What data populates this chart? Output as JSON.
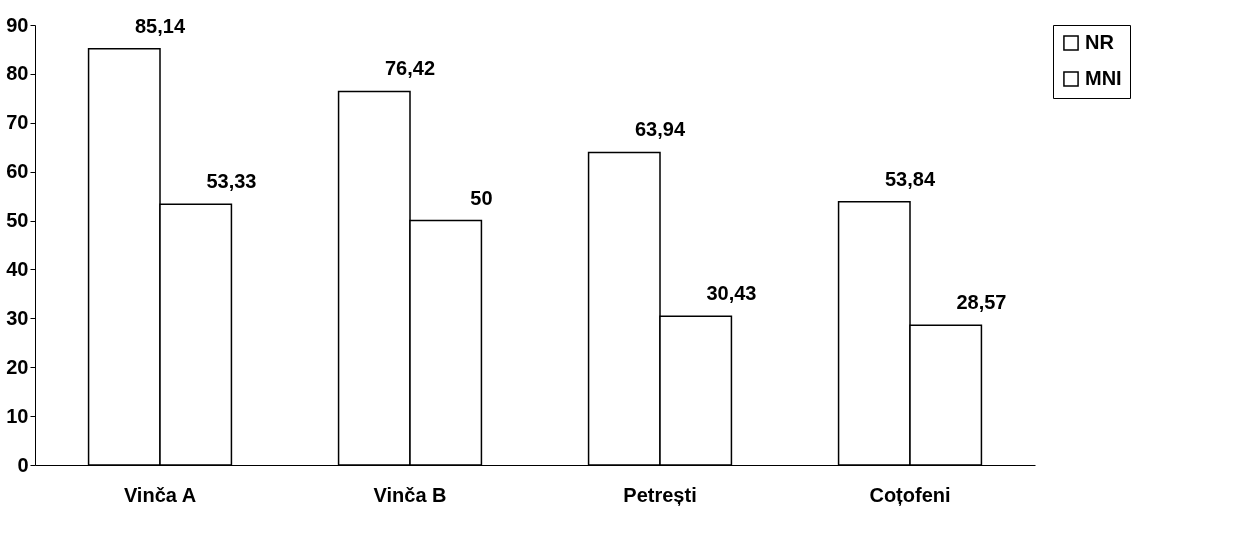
{
  "chart_data": {
    "type": "bar",
    "categories": [
      "Vinča A",
      "Vinča B",
      "Petrești",
      "Coțofeni"
    ],
    "series": [
      {
        "name": "NR",
        "color": "#ffffff",
        "values": [
          85.14,
          76.42,
          63.94,
          53.84
        ],
        "value_labels": [
          "85,14",
          "76,42",
          "63,94",
          "53,84"
        ]
      },
      {
        "name": "MNI",
        "color": "#ffffff",
        "values": [
          53.33,
          50,
          30.43,
          28.57
        ],
        "value_labels": [
          "53,33",
          "50",
          "30,43",
          "28,57"
        ]
      }
    ],
    "ylim": [
      0,
      90
    ],
    "yticks": [
      0,
      10,
      20,
      30,
      40,
      50,
      60,
      70,
      80,
      90
    ],
    "grid": false,
    "legend": "right"
  }
}
